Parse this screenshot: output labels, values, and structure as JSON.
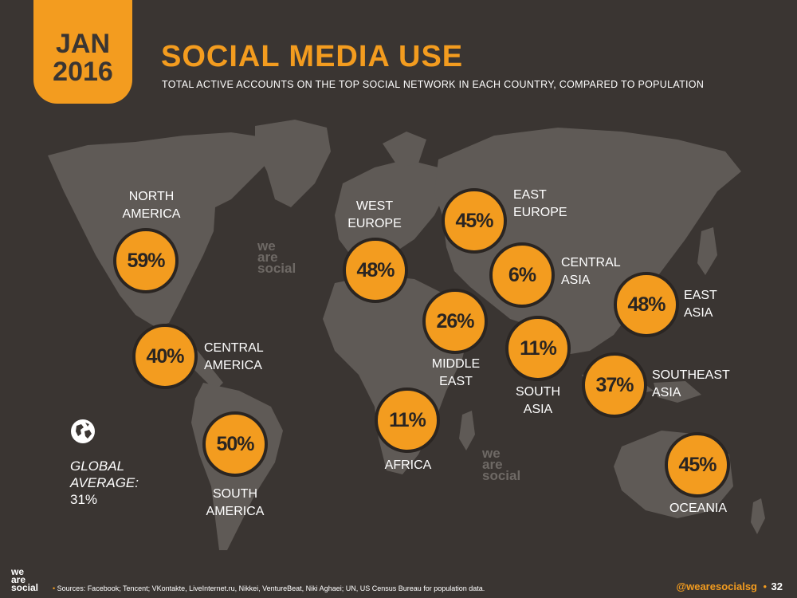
{
  "header": {
    "month": "JAN",
    "year": "2016",
    "title": "SOCIAL MEDIA USE",
    "subtitle": "TOTAL ACTIVE ACCOUNTS ON THE TOP SOCIAL NETWORK IN EACH COUNTRY, COMPARED TO POPULATION"
  },
  "regions": {
    "north_america": {
      "label_1": "NORTH",
      "label_2": "AMERICA",
      "value": "59%"
    },
    "central_america": {
      "label_1": "CENTRAL",
      "label_2": "AMERICA",
      "value": "40%"
    },
    "south_america": {
      "label_1": "SOUTH",
      "label_2": "AMERICA",
      "value": "50%"
    },
    "west_europe": {
      "label_1": "WEST",
      "label_2": "EUROPE",
      "value": "48%"
    },
    "east_europe": {
      "label_1": "EAST",
      "label_2": "EUROPE",
      "value": "45%"
    },
    "central_asia": {
      "label_1": "CENTRAL",
      "label_2": "ASIA",
      "value": "6%"
    },
    "middle_east": {
      "label_1": "MIDDLE",
      "label_2": "EAST",
      "value": "26%"
    },
    "africa": {
      "label_1": "AFRICA",
      "value": "11%"
    },
    "south_asia": {
      "label_1": "SOUTH",
      "label_2": "ASIA",
      "value": "11%"
    },
    "east_asia": {
      "label_1": "EAST",
      "label_2": "ASIA",
      "value": "48%"
    },
    "southeast_asia": {
      "label_1": "SOUTHEAST",
      "label_2": "ASIA",
      "value": "37%"
    },
    "oceania": {
      "label_1": "OCEANIA",
      "value": "45%"
    }
  },
  "global": {
    "line_1": "GLOBAL",
    "line_2": "AVERAGE:",
    "line_3": "31%"
  },
  "watermark": {
    "w1": "we",
    "w2": "are",
    "w3": "social"
  },
  "footer": {
    "logo_1": "we",
    "logo_2": "are",
    "logo_3": "social",
    "bullet": "•",
    "sources": "Sources: Facebook; Tencent; VKontakte, LiveInternet.ru, Nikkei, VentureBeat, Niki Aghaei; UN, US Census Bureau for population data.",
    "handle": "@wearesocialsg",
    "separator": "•",
    "page": "32"
  },
  "colors": {
    "background": "#3a3532",
    "land": "#5f5a56",
    "accent": "#f39c1f"
  },
  "icons": {
    "globe": "globe-icon"
  }
}
